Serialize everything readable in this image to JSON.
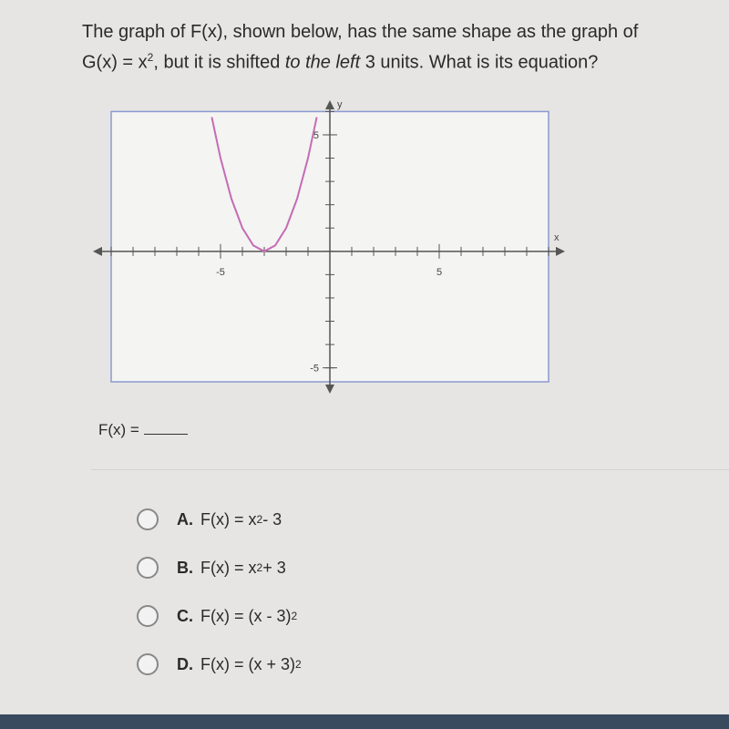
{
  "question": {
    "line1": "The graph of F(x), shown below, has the same shape as the graph of",
    "line2": [
      "G(x) = x",
      "2",
      ", but it is shifted ",
      "to the left",
      " 3 units. What is its equation?"
    ]
  },
  "chart_data": {
    "type": "line",
    "x_label": "x",
    "y_label": "y",
    "xlim": [
      -10,
      10
    ],
    "ylim": [
      -5.6,
      6
    ],
    "xticks": [
      -5,
      5
    ],
    "yticks": [
      -5,
      5
    ],
    "series": [
      {
        "color": "#c46cb4",
        "x": [
          -5.4,
          -5,
          -4.5,
          -4,
          -3.5,
          -3,
          -2.5,
          -2,
          -1.5,
          -1,
          -0.6
        ],
        "values": [
          5.76,
          4,
          2.25,
          1,
          0.25,
          0,
          0.25,
          1,
          2.25,
          4,
          5.76
        ]
      }
    ]
  },
  "prompt": "F(x) =",
  "options": [
    {
      "letter": "A.",
      "expr": [
        "F(x) = x",
        "2",
        " - 3"
      ]
    },
    {
      "letter": "B.",
      "expr": [
        "F(x) = x",
        "2",
        " + 3"
      ]
    },
    {
      "letter": "C.",
      "expr": [
        "F(x) = (x - 3)",
        "2"
      ]
    },
    {
      "letter": "D.",
      "expr": [
        "F(x) = (x + 3)",
        "2"
      ]
    }
  ]
}
